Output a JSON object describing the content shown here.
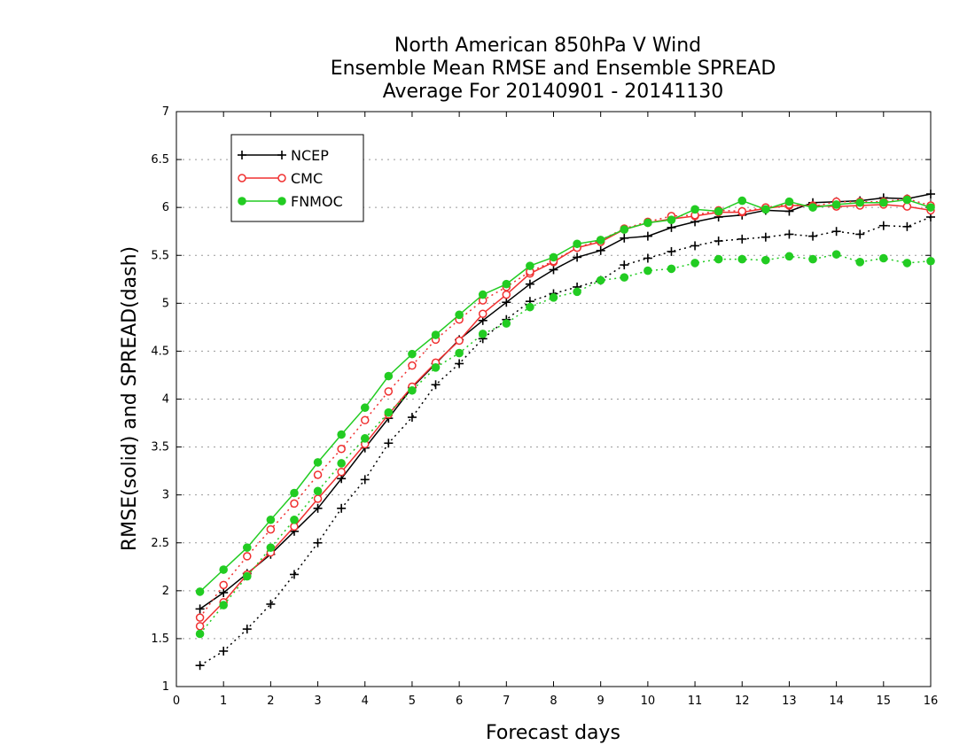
{
  "chart_data": {
    "type": "line",
    "title": [
      "North American 850hPa V Wind",
      "Ensemble Mean RMSE and Ensemble SPREAD",
      "Average For 20140901 - 20141130"
    ],
    "xlabel": "Forecast days",
    "ylabel": "RMSE(solid) and SPREAD(dash)",
    "xlim": [
      0,
      16
    ],
    "ylim": [
      1,
      7
    ],
    "xticks": [
      0,
      1,
      2,
      3,
      4,
      5,
      6,
      7,
      8,
      9,
      10,
      11,
      12,
      13,
      14,
      15,
      16
    ],
    "yticks": [
      1,
      1.5,
      2,
      2.5,
      3,
      3.5,
      4,
      4.5,
      5,
      5.5,
      6,
      6.5,
      7
    ],
    "grid": "horizontal dotted",
    "legend_position": "top-left",
    "x": [
      0.5,
      1,
      1.5,
      2,
      2.5,
      3,
      3.5,
      4,
      4.5,
      5,
      5.5,
      6,
      6.5,
      7,
      7.5,
      8,
      8.5,
      9,
      9.5,
      10,
      10.5,
      11,
      11.5,
      12,
      12.5,
      13,
      13.5,
      14,
      14.5,
      15,
      15.5,
      16
    ],
    "series": [
      {
        "name": "NCEP",
        "metric": "RMSE",
        "style": "solid",
        "color": "#000000",
        "marker": "plus",
        "values": [
          1.81,
          1.98,
          2.18,
          2.38,
          2.62,
          2.86,
          3.17,
          3.49,
          3.8,
          4.12,
          4.37,
          4.62,
          4.82,
          5.01,
          5.2,
          5.35,
          5.48,
          5.55,
          5.68,
          5.7,
          5.79,
          5.85,
          5.9,
          5.92,
          5.97,
          5.96,
          6.05,
          6.06,
          6.07,
          6.1,
          6.09,
          6.14
        ]
      },
      {
        "name": "NCEP",
        "metric": "SPREAD",
        "style": "dash",
        "color": "#000000",
        "marker": "plus",
        "values": [
          1.22,
          1.37,
          1.6,
          1.86,
          2.17,
          2.5,
          2.86,
          3.16,
          3.54,
          3.81,
          4.15,
          4.37,
          4.63,
          4.83,
          5.02,
          5.1,
          5.17,
          5.24,
          5.4,
          5.47,
          5.54,
          5.6,
          5.65,
          5.67,
          5.69,
          5.72,
          5.7,
          5.75,
          5.72,
          5.81,
          5.8,
          5.9
        ]
      },
      {
        "name": "CMC",
        "metric": "RMSE",
        "style": "solid",
        "color": "#f03030",
        "marker": "circle-open",
        "values": [
          1.63,
          1.88,
          2.17,
          2.4,
          2.67,
          2.96,
          3.24,
          3.53,
          3.84,
          4.13,
          4.38,
          4.61,
          4.89,
          5.09,
          5.31,
          5.43,
          5.58,
          5.64,
          5.77,
          5.84,
          5.88,
          5.91,
          5.95,
          5.95,
          5.99,
          6.02,
          6.02,
          6.01,
          6.02,
          6.03,
          6.01,
          5.97
        ]
      },
      {
        "name": "CMC",
        "metric": "SPREAD",
        "style": "dash",
        "color": "#f03030",
        "marker": "circle-open",
        "values": [
          1.72,
          2.06,
          2.36,
          2.64,
          2.91,
          3.21,
          3.48,
          3.78,
          4.08,
          4.35,
          4.62,
          4.83,
          5.03,
          5.17,
          5.33,
          5.44,
          5.58,
          5.66,
          5.78,
          5.85,
          5.91,
          5.92,
          5.97,
          5.96,
          6.0,
          6.03,
          6.01,
          6.06,
          6.06,
          6.06,
          6.09,
          6.02
        ]
      },
      {
        "name": "FNMOC",
        "metric": "RMSE",
        "style": "solid",
        "color": "#22cc22",
        "marker": "circle-filled",
        "values": [
          1.99,
          2.22,
          2.45,
          2.74,
          3.02,
          3.34,
          3.63,
          3.91,
          4.24,
          4.47,
          4.67,
          4.88,
          5.09,
          5.2,
          5.39,
          5.48,
          5.62,
          5.66,
          5.77,
          5.84,
          5.87,
          5.98,
          5.96,
          6.07,
          5.98,
          6.06,
          6.0,
          6.03,
          6.05,
          6.05,
          6.08,
          6.0
        ]
      },
      {
        "name": "FNMOC",
        "metric": "SPREAD",
        "style": "dash",
        "color": "#22cc22",
        "marker": "circle-filled",
        "values": [
          1.55,
          1.85,
          2.15,
          2.45,
          2.74,
          3.04,
          3.33,
          3.59,
          3.86,
          4.09,
          4.33,
          4.48,
          4.68,
          4.79,
          4.96,
          5.06,
          5.12,
          5.24,
          5.27,
          5.34,
          5.36,
          5.42,
          5.46,
          5.46,
          5.45,
          5.49,
          5.46,
          5.51,
          5.43,
          5.47,
          5.42,
          5.44
        ]
      }
    ],
    "legend": [
      {
        "label": "NCEP",
        "color": "#000000",
        "marker": "plus"
      },
      {
        "label": "CMC",
        "color": "#f03030",
        "marker": "circle-open"
      },
      {
        "label": "FNMOC",
        "color": "#22cc22",
        "marker": "circle-filled"
      }
    ]
  }
}
